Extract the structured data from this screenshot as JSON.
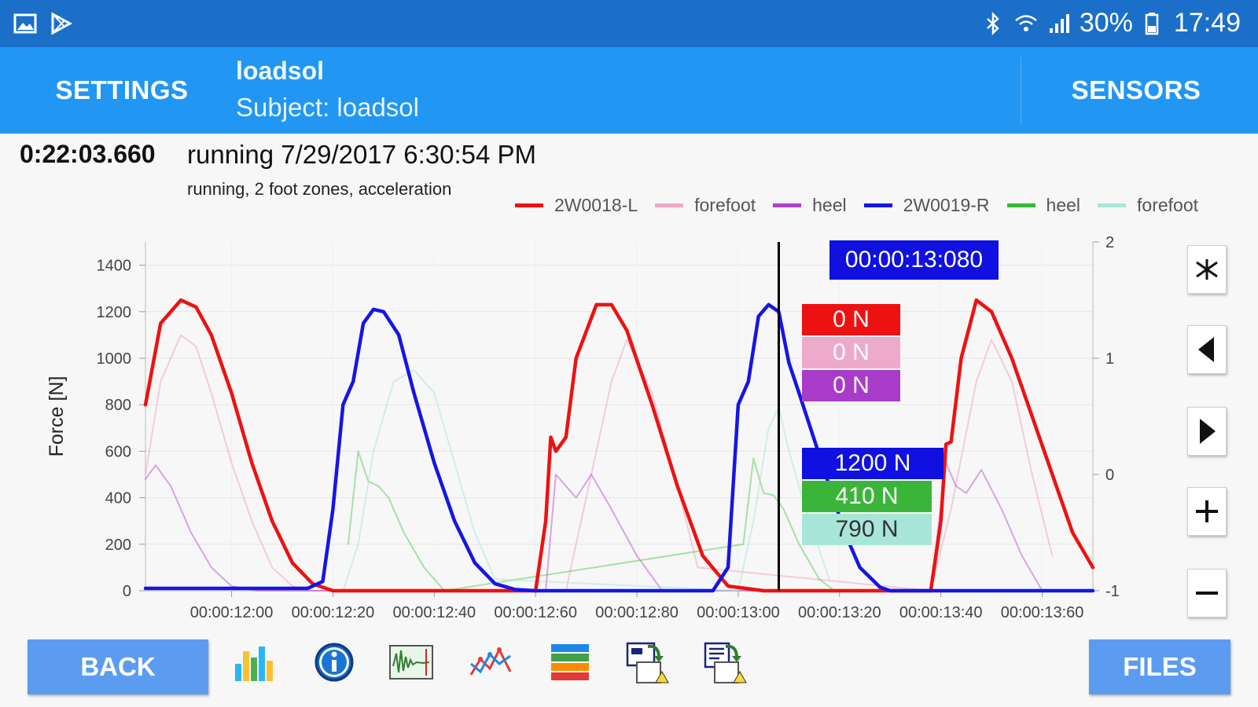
{
  "statusbar": {
    "battery": "30%",
    "time": "17:49",
    "icons": [
      "image-icon",
      "play-store-icon",
      "bluetooth-icon",
      "wifi-icon",
      "signal-icon",
      "battery-icon"
    ]
  },
  "toolbar": {
    "settings_label": "SETTINGS",
    "title": "loadsol",
    "subtitle": "Subject: loadsol",
    "sensors_label": "SENSORS"
  },
  "record": {
    "elapsed": "0:22:03.660",
    "title": "running 7/29/2017 6:30:54 PM",
    "description": "running, 2 foot zones, acceleration"
  },
  "legend": [
    {
      "label": "2W0018-L",
      "color": "#ee1111"
    },
    {
      "label": "forefoot",
      "color": "#f4a6c6"
    },
    {
      "label": "heel",
      "color": "#b040d0"
    },
    {
      "label": "2W0019-R",
      "color": "#1515e6"
    },
    {
      "label": "heel",
      "color": "#33bb33"
    },
    {
      "label": "forefoot",
      "color": "#a8e6d8"
    }
  ],
  "hover": {
    "time": "00:00:13:080",
    "values": [
      {
        "text": "0 N",
        "color": "#ee1111"
      },
      {
        "text": "0 N",
        "color": "#eeaacc"
      },
      {
        "text": "0 N",
        "color": "#a83cc8"
      },
      {
        "text": "1200 N",
        "color": "#1010e0"
      },
      {
        "text": "410 N",
        "color": "#3ab53a"
      },
      {
        "text": "790 N",
        "color": "#a8e6d8"
      }
    ]
  },
  "chart_data": {
    "type": "line",
    "ylabel": "Force [N]",
    "ylim": [
      0,
      1500
    ],
    "yticks": [
      "0",
      "200",
      "400",
      "600",
      "800",
      "1000",
      "1200",
      "1400"
    ],
    "y2ticks": [
      "-1",
      "0",
      "1",
      "2"
    ],
    "y2lim": [
      -1,
      2
    ],
    "xlim": [
      11.83,
      13.7
    ],
    "xticks": [
      "00:00:12:00",
      "00:00:12:20",
      "00:00:12:40",
      "00:00:12:60",
      "00:00:12:80",
      "00:00:13:00",
      "00:00:13:20",
      "00:00:13:40",
      "00:00:13:60"
    ],
    "cursor_x": 13.08,
    "grid": true,
    "series": [
      {
        "name": "2W0018-L",
        "color": "#ee1111",
        "width": 4.5,
        "opacity": 1,
        "x": [
          11.83,
          11.86,
          11.9,
          11.93,
          11.96,
          12.0,
          12.04,
          12.08,
          12.12,
          12.16,
          12.2,
          12.25,
          12.3,
          12.6,
          12.62,
          12.63,
          12.64,
          12.66,
          12.68,
          12.72,
          12.75,
          12.78,
          12.83,
          12.88,
          12.93,
          12.98,
          13.05,
          13.15,
          13.3,
          13.38,
          13.4,
          13.41,
          13.42,
          13.44,
          13.47,
          13.5,
          13.54,
          13.58,
          13.62,
          13.66,
          13.7
        ],
        "y": [
          800,
          1150,
          1250,
          1220,
          1100,
          850,
          550,
          300,
          120,
          30,
          0,
          0,
          0,
          0,
          300,
          660,
          600,
          660,
          1000,
          1230,
          1230,
          1120,
          800,
          450,
          150,
          20,
          0,
          0,
          0,
          0,
          300,
          630,
          640,
          1000,
          1250,
          1200,
          1000,
          750,
          500,
          250,
          100
        ]
      },
      {
        "name": "forefoot",
        "color": "#f4a6c6",
        "width": 2,
        "opacity": 0.55,
        "x": [
          11.83,
          11.86,
          11.9,
          11.93,
          11.96,
          12.0,
          12.04,
          12.08,
          12.12,
          12.16,
          12.66,
          12.7,
          12.75,
          12.78,
          12.83,
          12.88,
          12.92,
          13.38,
          13.42,
          13.47,
          13.5,
          13.54,
          13.58,
          13.62
        ],
        "y": [
          500,
          900,
          1100,
          1050,
          850,
          550,
          300,
          100,
          20,
          0,
          0,
          400,
          900,
          1080,
          850,
          450,
          100,
          0,
          350,
          900,
          1080,
          900,
          500,
          150
        ]
      },
      {
        "name": "heel",
        "color": "#b040d0",
        "width": 2,
        "opacity": 0.45,
        "x": [
          11.83,
          11.85,
          11.88,
          11.92,
          11.96,
          12.0,
          12.05,
          12.62,
          12.64,
          12.66,
          12.68,
          12.71,
          12.75,
          12.8,
          12.85,
          13.38,
          13.41,
          13.43,
          13.45,
          13.48,
          13.52,
          13.56,
          13.6
        ],
        "y": [
          480,
          540,
          450,
          250,
          100,
          20,
          0,
          0,
          500,
          450,
          400,
          500,
          350,
          150,
          0,
          0,
          550,
          450,
          420,
          520,
          350,
          150,
          0
        ]
      },
      {
        "name": "2W0019-R",
        "color": "#1515e6",
        "width": 4.5,
        "opacity": 1,
        "x": [
          11.83,
          12.15,
          12.18,
          12.2,
          12.22,
          12.24,
          12.26,
          12.28,
          12.3,
          12.33,
          12.36,
          12.4,
          12.44,
          12.48,
          12.52,
          12.56,
          12.6,
          12.95,
          12.98,
          13.0,
          13.02,
          13.04,
          13.06,
          13.08,
          13.1,
          13.12,
          13.15,
          13.18,
          13.21,
          13.24,
          13.28,
          13.3,
          13.7
        ],
        "y": [
          10,
          10,
          40,
          350,
          800,
          900,
          1150,
          1210,
          1200,
          1100,
          850,
          550,
          300,
          120,
          30,
          5,
          0,
          0,
          100,
          800,
          900,
          1180,
          1230,
          1200,
          980,
          850,
          650,
          450,
          250,
          100,
          15,
          0,
          0
        ]
      },
      {
        "name": "heel",
        "color": "#33bb33",
        "width": 2,
        "opacity": 0.4,
        "x": [
          12.23,
          12.25,
          12.27,
          12.29,
          12.31,
          12.34,
          12.38,
          12.42,
          13.01,
          13.03,
          13.05,
          13.07,
          13.09,
          13.12,
          13.16,
          13.19
        ],
        "y": [
          200,
          600,
          470,
          450,
          400,
          250,
          100,
          0,
          200,
          570,
          420,
          410,
          350,
          200,
          50,
          0
        ]
      },
      {
        "name": "forefoot",
        "color": "#a8e6d8",
        "width": 2,
        "opacity": 0.5,
        "x": [
          12.22,
          12.25,
          12.28,
          12.32,
          12.36,
          12.4,
          12.44,
          12.48,
          12.52,
          13.0,
          13.03,
          13.06,
          13.08,
          13.1,
          13.14,
          13.18
        ],
        "y": [
          0,
          200,
          600,
          900,
          950,
          850,
          550,
          250,
          50,
          0,
          300,
          700,
          790,
          600,
          300,
          50
        ]
      }
    ]
  },
  "buttons": {
    "back_label": "BACK",
    "files_label": "FILES"
  },
  "tools": [
    "bar-chart-icon",
    "info-icon",
    "waveform-icon",
    "line-chart-icon",
    "layers-icon",
    "export-icon",
    "report-icon"
  ],
  "side_controls": [
    "cut-icon",
    "arrow-left-icon",
    "arrow-right-icon",
    "zoom-in-icon",
    "zoom-out-icon"
  ]
}
